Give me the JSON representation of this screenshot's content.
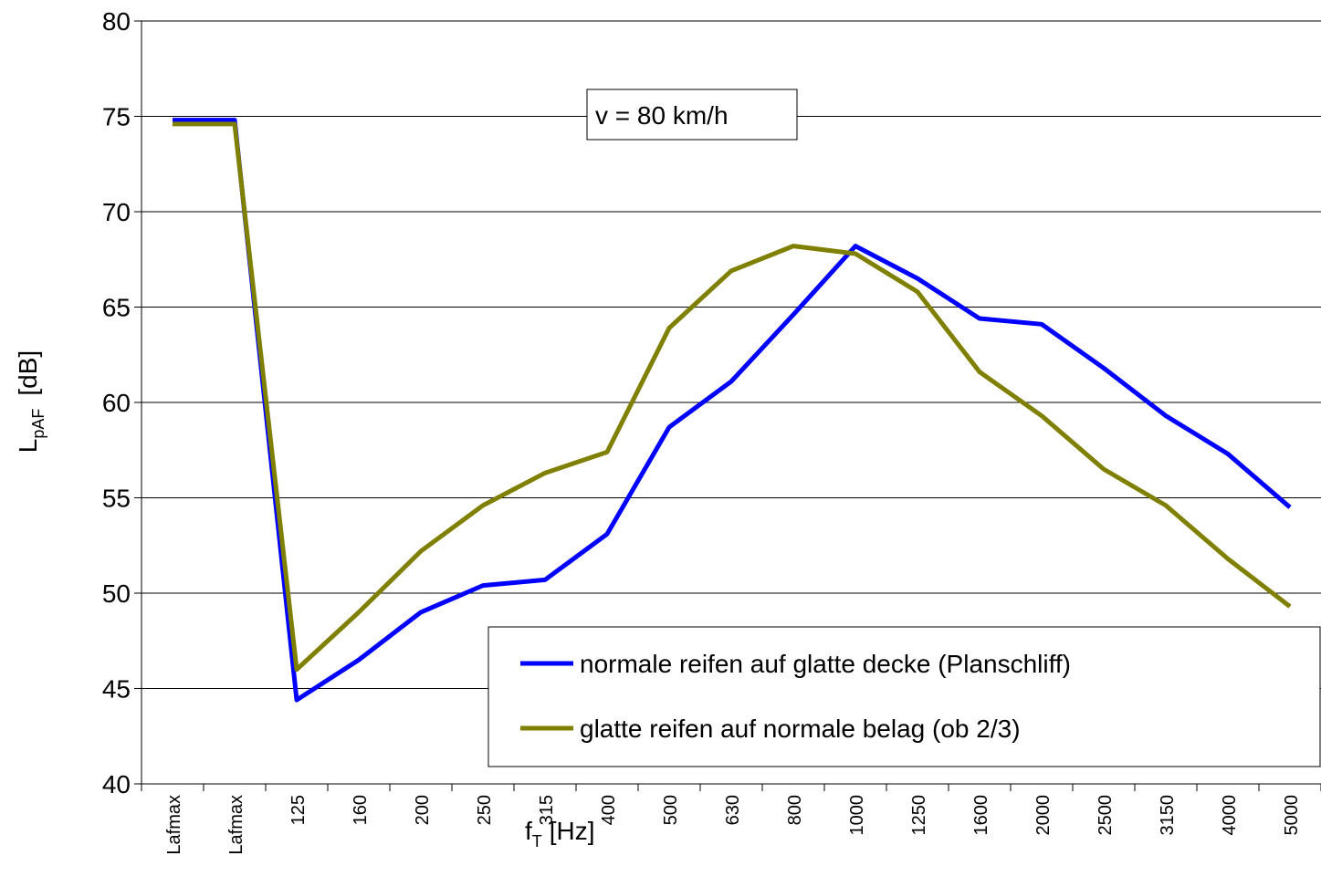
{
  "chart_data": {
    "type": "line",
    "annotation": "v = 80 km/h",
    "y_label": {
      "main": "L",
      "sub": "pAF",
      "unit": "[dB]"
    },
    "x_label": {
      "main": "f",
      "sub": "T",
      "unit": "[Hz]"
    },
    "categories": [
      "Lafmax",
      "Lafmax",
      "125",
      "160",
      "200",
      "250",
      "315",
      "400",
      "500",
      "630",
      "800",
      "1000",
      "1250",
      "1600",
      "2000",
      "2500",
      "3150",
      "4000",
      "5000"
    ],
    "series": [
      {
        "name": "normale reifen auf glatte decke (Planschliff)",
        "color": "#0000ff",
        "values": [
          74.8,
          74.8,
          44.4,
          46.5,
          49.0,
          50.4,
          50.7,
          53.1,
          58.7,
          61.1,
          64.6,
          68.2,
          66.5,
          64.4,
          64.1,
          61.8,
          59.3,
          57.3,
          54.5
        ]
      },
      {
        "name": "glatte reifen auf normale belag (ob 2/3)",
        "color": "#808000",
        "values": [
          74.6,
          74.6,
          46.0,
          49.0,
          52.2,
          54.6,
          56.3,
          57.4,
          63.9,
          66.9,
          68.2,
          67.8,
          65.8,
          61.6,
          59.3,
          56.5,
          54.6,
          51.8,
          49.3
        ]
      }
    ],
    "ylim": [
      40,
      80
    ],
    "yticks": [
      40,
      45,
      50,
      55,
      60,
      65,
      70,
      75,
      80
    ],
    "grid": true,
    "legend": "lower right"
  }
}
